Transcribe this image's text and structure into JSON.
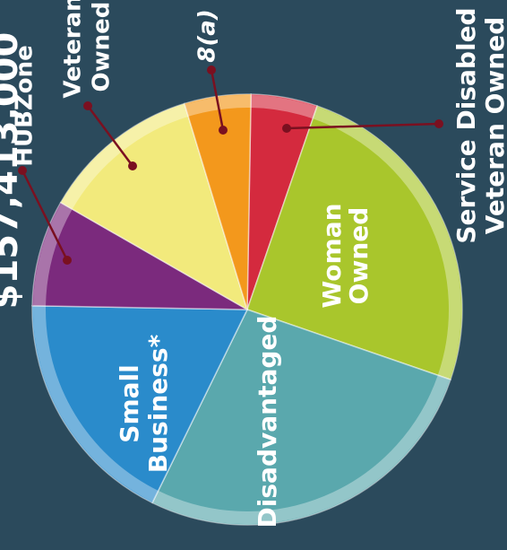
{
  "chart_data": {
    "type": "pie",
    "title": "$157,413,000",
    "categories": [
      [
        "Service Disabled",
        "Veteran Owned"
      ],
      [
        "Woman",
        "Owned"
      ],
      [
        "Disadvantaged"
      ],
      [
        "Small",
        "Business*"
      ],
      [
        "HUBZone"
      ],
      [
        "Veteran",
        "Owned"
      ],
      [
        "8(a)"
      ]
    ],
    "values": [
      5,
      25,
      27,
      18,
      8,
      12,
      5
    ],
    "colors": [
      "#d42a3e",
      "#a9c62c",
      "#5aa8ad",
      "#2a8bcb",
      "#7b2a7d",
      "#f2ea7c",
      "#f3981c"
    ],
    "start_angle": 1
  }
}
